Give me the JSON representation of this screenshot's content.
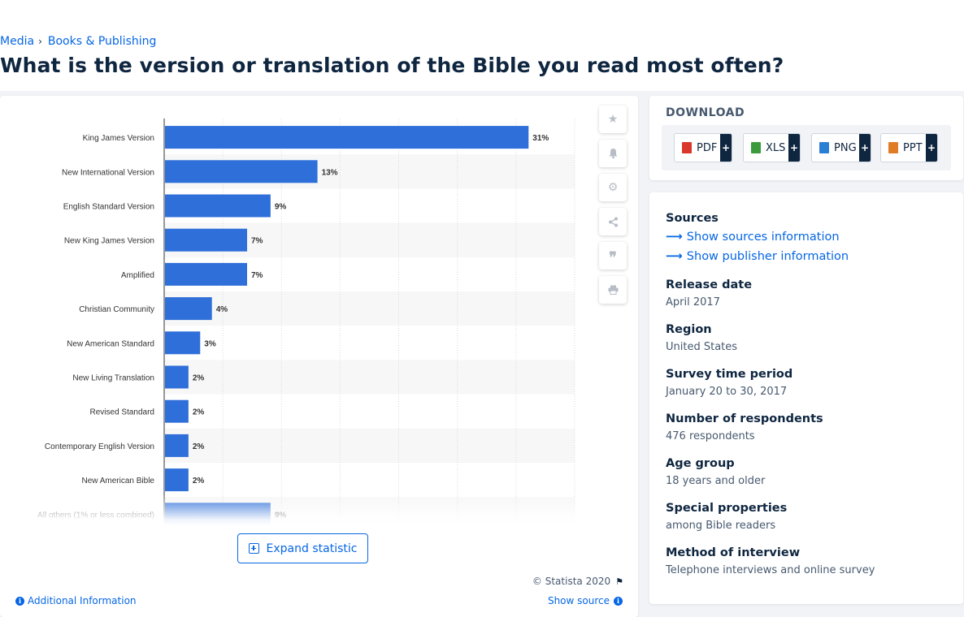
{
  "breadcrumb": {
    "items": [
      "Media",
      "Books & Publishing"
    ],
    "separator": "›"
  },
  "page_title": "What is the version or translation of the Bible you read most often?",
  "chart_data": {
    "type": "bar",
    "orientation": "horizontal",
    "categories": [
      "King James Version",
      "New International Version",
      "English Standard Version",
      "New King James Version",
      "Amplified",
      "Christian Community",
      "New American Standard",
      "New Living Translation",
      "Revised Standard",
      "Contemporary English Version",
      "New American Bible",
      "All others (1% or less combined)"
    ],
    "values": [
      31,
      13,
      9,
      7,
      7,
      4,
      3,
      2,
      2,
      2,
      2,
      9
    ],
    "value_labels": [
      "31%",
      "13%",
      "9%",
      "7%",
      "7%",
      "4%",
      "3%",
      "2%",
      "2%",
      "2%",
      "2%",
      "9%"
    ],
    "xlim": [
      0,
      35
    ],
    "grid": true,
    "bar_color": "#2f6fd9"
  },
  "toolbar": {
    "icons": [
      "star-icon",
      "bell-icon",
      "gear-icon",
      "share-icon",
      "quote-icon",
      "print-icon"
    ]
  },
  "expand_label": "Expand statistic",
  "copyright": "© Statista 2020",
  "additional_info": "Additional Information",
  "show_source": "Show source",
  "download": {
    "title": "DOWNLOAD",
    "buttons": [
      {
        "label": "PDF",
        "color": "#d9372b"
      },
      {
        "label": "XLS",
        "color": "#3b9a3b"
      },
      {
        "label": "PNG",
        "color": "#2a7fd4"
      },
      {
        "label": "PPT",
        "color": "#e07b26"
      }
    ],
    "plus": "+"
  },
  "info": {
    "sources_title": "Sources",
    "show_sources": "Show sources information",
    "show_publisher": "Show publisher information",
    "release_date_label": "Release date",
    "release_date": "April 2017",
    "region_label": "Region",
    "region": "United States",
    "survey_period_label": "Survey time period",
    "survey_period": "January 20 to 30, 2017",
    "respondents_label": "Number of respondents",
    "respondents": "476 respondents",
    "age_group_label": "Age group",
    "age_group": "18 years and older",
    "special_label": "Special properties",
    "special": "among Bible readers",
    "method_label": "Method of interview",
    "method": "Telephone interviews and online survey"
  }
}
